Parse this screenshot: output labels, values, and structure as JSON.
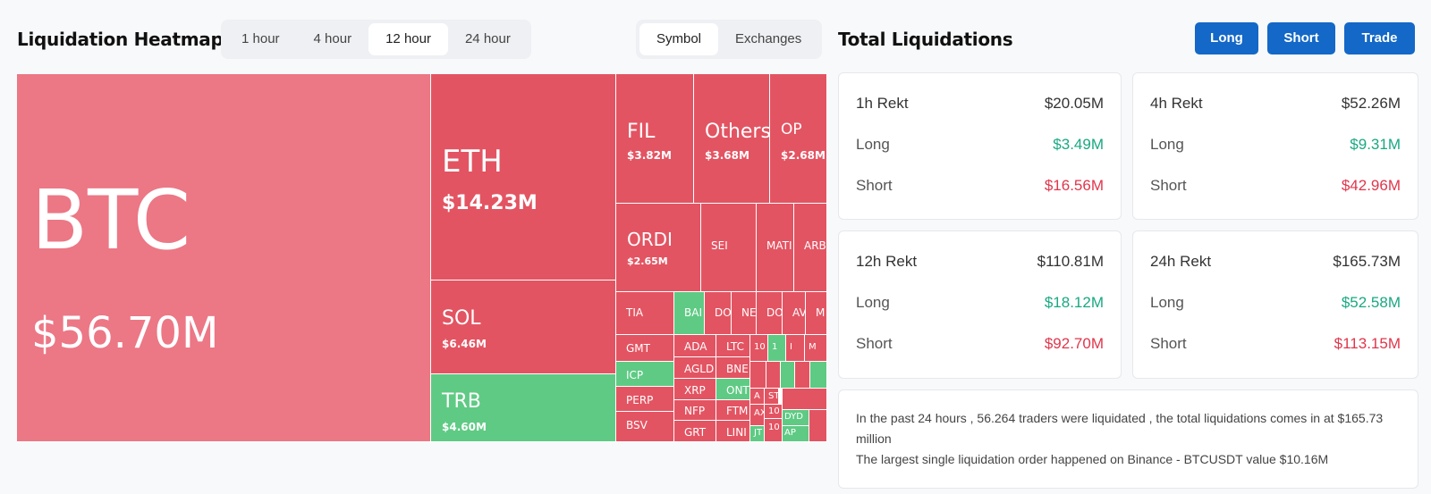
{
  "header": {
    "heatmap_title": "Liquidation Heatmap",
    "total_title": "Total Liquidations",
    "time_options": [
      "1 hour",
      "4 hour",
      "12 hour",
      "24 hour"
    ],
    "time_selected": "12 hour",
    "view_options": [
      "Symbol",
      "Exchanges"
    ],
    "view_selected": "Symbol",
    "buttons": {
      "long": "Long",
      "short": "Short",
      "trade": "Trade"
    }
  },
  "treemap": {
    "colors": {
      "short_liquidated": "#e35462",
      "btc": "#ec7785",
      "long_liquidated": "#5fca84"
    },
    "tiles": [
      {
        "symbol": "BTC",
        "value": "$56.70M"
      },
      {
        "symbol": "ETH",
        "value": "$14.23M"
      },
      {
        "symbol": "SOL",
        "value": "$6.46M"
      },
      {
        "symbol": "TRB",
        "value": "$4.60M"
      },
      {
        "symbol": "FIL",
        "value": "$3.82M"
      },
      {
        "symbol": "Others",
        "value": "$3.68M"
      },
      {
        "symbol": "OP",
        "value": "$2.68M"
      },
      {
        "symbol": "ORDI",
        "value": "$2.65M"
      },
      {
        "symbol": "SEI",
        "value": ""
      },
      {
        "symbol": "MATI",
        "value": ""
      },
      {
        "symbol": "ARB",
        "value": ""
      },
      {
        "symbol": "TIA",
        "value": ""
      },
      {
        "symbol": "GMT",
        "value": ""
      },
      {
        "symbol": "ICP",
        "value": ""
      },
      {
        "symbol": "PERP",
        "value": ""
      },
      {
        "symbol": "BSV",
        "value": ""
      },
      {
        "symbol": "BAI",
        "value": ""
      },
      {
        "symbol": "DO",
        "value": ""
      },
      {
        "symbol": "NE",
        "value": ""
      },
      {
        "symbol": "DO",
        "value": ""
      },
      {
        "symbol": "AV",
        "value": ""
      },
      {
        "symbol": "M",
        "value": ""
      },
      {
        "symbol": "ADA",
        "value": ""
      },
      {
        "symbol": "LTC",
        "value": ""
      },
      {
        "symbol": "AGLD",
        "value": ""
      },
      {
        "symbol": "BNE",
        "value": ""
      },
      {
        "symbol": "XRP",
        "value": ""
      },
      {
        "symbol": "ONT",
        "value": ""
      },
      {
        "symbol": "NFP",
        "value": ""
      },
      {
        "symbol": "FTM",
        "value": ""
      },
      {
        "symbol": "GRT",
        "value": ""
      },
      {
        "symbol": "LINI",
        "value": ""
      },
      {
        "symbol": "10",
        "value": ""
      },
      {
        "symbol": "1",
        "value": ""
      },
      {
        "symbol": "I",
        "value": ""
      },
      {
        "symbol": "M",
        "value": ""
      },
      {
        "symbol": "A",
        "value": ""
      },
      {
        "symbol": "ST",
        "value": ""
      },
      {
        "symbol": "10",
        "value": ""
      },
      {
        "symbol": "AX",
        "value": ""
      },
      {
        "symbol": "JT",
        "value": ""
      },
      {
        "symbol": "DYD",
        "value": ""
      },
      {
        "symbol": "AP",
        "value": ""
      },
      {
        "symbol": "10",
        "value": ""
      },
      {
        "symbol": "",
        "value": ""
      },
      {
        "symbol": "",
        "value": ""
      },
      {
        "symbol": "",
        "value": ""
      },
      {
        "symbol": "",
        "value": ""
      },
      {
        "symbol": "",
        "value": ""
      },
      {
        "symbol": "",
        "value": ""
      }
    ]
  },
  "stats": {
    "cards": [
      {
        "title": "1h Rekt",
        "total": "$20.05M",
        "long_label": "Long",
        "long": "$3.49M",
        "short_label": "Short",
        "short": "$16.56M"
      },
      {
        "title": "4h Rekt",
        "total": "$52.26M",
        "long_label": "Long",
        "long": "$9.31M",
        "short_label": "Short",
        "short": "$42.96M"
      },
      {
        "title": "12h Rekt",
        "total": "$110.81M",
        "long_label": "Long",
        "long": "$18.12M",
        "short_label": "Short",
        "short": "$92.70M"
      },
      {
        "title": "24h Rekt",
        "total": "$165.73M",
        "long_label": "Long",
        "long": "$52.58M",
        "short_label": "Short",
        "short": "$113.15M"
      }
    ],
    "colors": {
      "long": "#1aa882",
      "short": "#e0364b"
    }
  },
  "summary": {
    "line1": "In the past 24 hours , 56.264 traders were liquidated , the total liquidations comes in at $165.73 million",
    "line2": "The largest single liquidation order happened on Binance - BTCUSDT value $10.16M"
  }
}
